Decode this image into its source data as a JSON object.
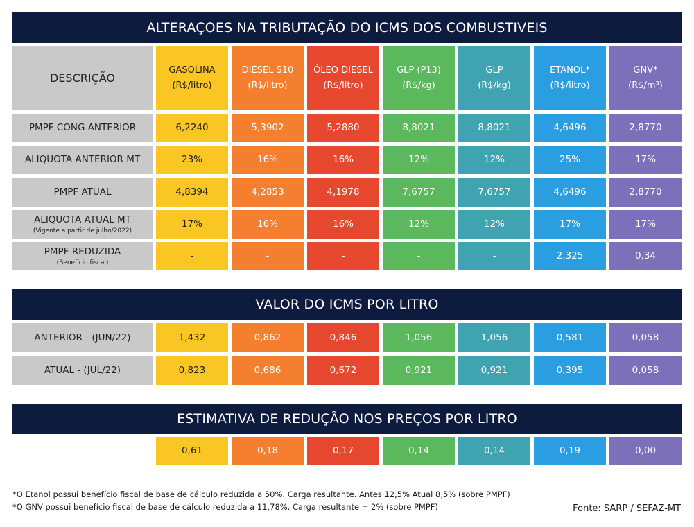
{
  "section1": {
    "title": "ALTERAÇOES NA TRIBUTAÇÃO DO ICMS DOS COMBUSTIVEIS",
    "desc_header": "DESCRIÇÃO",
    "columns": [
      {
        "name": "GASOLINA",
        "unit": "(R$/litro)"
      },
      {
        "name": "DIESEL S10",
        "unit": "(R$/litro)"
      },
      {
        "name": "ÓLEO DIESEL",
        "unit": "(R$/litro)"
      },
      {
        "name": "GLP (P13)",
        "unit": "(R$/kg)"
      },
      {
        "name": "GLP",
        "unit": "(R$/kg)"
      },
      {
        "name": "ETANOL*",
        "unit": "(R$/litro)"
      },
      {
        "name": "GNV*",
        "unit": "(R$/m³)"
      }
    ],
    "rows": [
      {
        "label": "PMPF CONG ANTERIOR",
        "sub": "",
        "values": [
          "6,2240",
          "5,3902",
          "5,2880",
          "8,8021",
          "8,8021",
          "4,6496",
          "2,8770"
        ]
      },
      {
        "label": "ALIQUOTA ANTERIOR MT",
        "sub": "",
        "values": [
          "23%",
          "16%",
          "16%",
          "12%",
          "12%",
          "25%",
          "17%"
        ]
      },
      {
        "label": "PMPF ATUAL",
        "sub": "",
        "values": [
          "4,8394",
          "4,2853",
          "4,1978",
          "7,6757",
          "7,6757",
          "4,6496",
          "2,8770"
        ]
      },
      {
        "label": "ALIQUOTA ATUAL MT",
        "sub": "(Vigente a partir de julho/2022)",
        "values": [
          "17%",
          "16%",
          "16%",
          "12%",
          "12%",
          "17%",
          "17%"
        ]
      },
      {
        "label": "PMPF REDUZIDA",
        "sub": "(Benefício fiscal)",
        "values": [
          "-",
          "-",
          "-",
          "-",
          "-",
          "2,325",
          "0,34"
        ]
      }
    ]
  },
  "section2": {
    "title": "VALOR DO ICMS POR LITRO",
    "rows": [
      {
        "label": "ANTERIOR - (JUN/22)",
        "values": [
          "1,432",
          "0,862",
          "0,846",
          "1,056",
          "1,056",
          "0,581",
          "0,058"
        ]
      },
      {
        "label": "ATUAL - (JUL/22)",
        "values": [
          "0,823",
          "0,686",
          "0,672",
          "0,921",
          "0,921",
          "0,395",
          "0,058"
        ]
      }
    ]
  },
  "section3": {
    "title": "ESTIMATIVA DE REDUÇÃO NOS PREÇOS POR LITRO",
    "values": [
      "0,61",
      "0,18",
      "0,17",
      "0,14",
      "0,14",
      "0,19",
      "0,00"
    ]
  },
  "footnotes": [
    "*O Etanol possui benefício fiscal de base de cálculo reduzida a 50%. Carga resultante. Antes 12,5% Atual 8,5% (sobre PMPF)",
    "*O GNV possui benefício fiscal de base de cálculo reduzida a 11,78%. Carga resultante = 2% (sobre PMPF)"
  ],
  "source": "Fonte: SARP / SEFAZ-MT",
  "colors": {
    "banner": "#0d1b3e",
    "description": "#c9c9c9",
    "gasolina": "#f9c624",
    "diesel_s10": "#f37f2f",
    "oleo_diesel": "#e5482e",
    "glp_p13": "#5cb85c",
    "glp": "#3fa3b2",
    "etanol": "#2a9ee0",
    "gnv": "#7c70ba"
  }
}
